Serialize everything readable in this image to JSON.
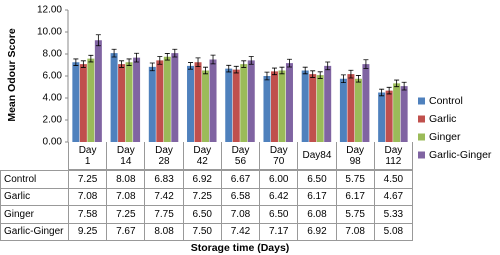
{
  "chart_data": {
    "type": "bar",
    "y_label": "Mean Odour Score",
    "x_label": "Storage time (Days)",
    "categories": [
      "Day 1",
      "Day 14",
      "Day 28",
      "Day 42",
      "Day 56",
      "Day 70",
      "Day84",
      "Day 98",
      "Day 112"
    ],
    "series": [
      {
        "name": "Control",
        "color": "#4f81bd",
        "values": [
          7.25,
          8.08,
          6.83,
          6.92,
          6.67,
          6.0,
          6.5,
          5.75,
          4.5
        ],
        "value_labels": [
          "7.25",
          "8.08",
          "6.83",
          "6.92",
          "6.67",
          "6.00",
          "6.50",
          "5.75",
          "4.50"
        ],
        "errors": [
          0.3,
          0.35,
          0.35,
          0.3,
          0.3,
          0.35,
          0.3,
          0.35,
          0.3
        ]
      },
      {
        "name": "Garlic",
        "color": "#c0504d",
        "values": [
          7.08,
          7.08,
          7.42,
          7.25,
          6.58,
          6.42,
          6.17,
          6.17,
          4.67
        ],
        "value_labels": [
          "7.08",
          "7.08",
          "7.42",
          "7.25",
          "6.58",
          "6.42",
          "6.17",
          "6.17",
          "4.67"
        ],
        "errors": [
          0.3,
          0.3,
          0.35,
          0.4,
          0.3,
          0.3,
          0.3,
          0.35,
          0.3
        ]
      },
      {
        "name": "Ginger",
        "color": "#9bbb59",
        "values": [
          7.58,
          7.25,
          7.75,
          6.5,
          7.08,
          6.5,
          6.08,
          5.75,
          5.33
        ],
        "value_labels": [
          "7.58",
          "7.25",
          "7.75",
          "6.50",
          "7.08",
          "6.50",
          "6.08",
          "5.75",
          "5.33"
        ],
        "errors": [
          0.3,
          0.3,
          0.3,
          0.3,
          0.3,
          0.3,
          0.3,
          0.3,
          0.3
        ]
      },
      {
        "name": "Garlic-Ginger",
        "color": "#8064a2",
        "values": [
          9.25,
          7.67,
          8.08,
          7.5,
          7.42,
          7.17,
          6.92,
          7.08,
          5.08
        ],
        "value_labels": [
          "9.25",
          "7.67",
          "8.08",
          "7.50",
          "7.42",
          "7.17",
          "6.92",
          "7.08",
          "5.08"
        ],
        "errors": [
          0.5,
          0.4,
          0.35,
          0.4,
          0.35,
          0.35,
          0.35,
          0.4,
          0.35
        ]
      }
    ],
    "ylim": [
      0,
      12
    ],
    "yticks": [
      {
        "value": 0,
        "label": "0.00"
      },
      {
        "value": 2,
        "label": "2.00"
      },
      {
        "value": 4,
        "label": "4.00"
      },
      {
        "value": 6,
        "label": "6.00"
      },
      {
        "value": 8,
        "label": "8.00"
      },
      {
        "value": 10,
        "label": "10.00"
      },
      {
        "value": 12,
        "label": "12.00"
      }
    ],
    "legend": "right"
  }
}
